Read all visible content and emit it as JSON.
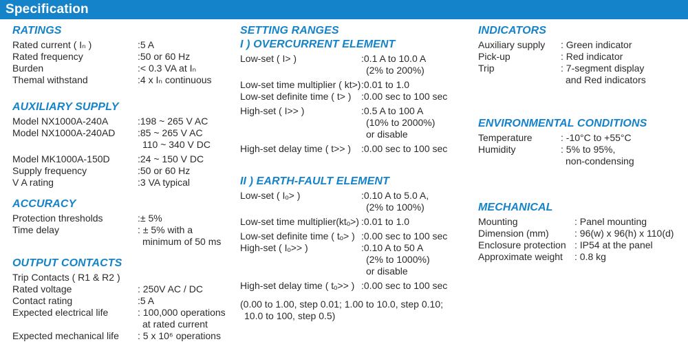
{
  "header": {
    "title": "Specification"
  },
  "colors": {
    "bar": "#1583c9",
    "heading": "#1583c9",
    "text": "#2a2a2a"
  },
  "columns": [
    {
      "sections": [
        {
          "slug": "ratings",
          "heading": "RATINGS",
          "rows": [
            {
              "label": "Rated current ( Iₙ )",
              "value": [
                ":5 A"
              ]
            },
            {
              "label": "Rated frequency",
              "value": [
                ":50 or 60 Hz"
              ]
            },
            {
              "label": "Burden",
              "value": [
                ":< 0.3 VA at Iₙ"
              ]
            },
            {
              "label": "Themal withstand",
              "value": [
                ":4 x Iₙ continuous"
              ]
            }
          ]
        },
        {
          "slug": "auxiliary-supply",
          "heading": "AUXILIARY SUPPLY",
          "rows": [
            {
              "label": "Model NX1000A-240A",
              "value": [
                ":198 ~ 265 V AC"
              ]
            },
            {
              "label": "Model NX1000A-240AD",
              "value": [
                ":85 ~ 265 V AC",
                "110 ~ 340 V DC"
              ]
            },
            {
              "label": "Model MK1000A-150D",
              "value": [
                ":24 ~ 150 V DC"
              ],
              "gap_top": true
            },
            {
              "label": "Supply frequency",
              "value": [
                ":50 or 60 Hz"
              ]
            },
            {
              "label": "V A rating",
              "value": [
                ":3 VA typical"
              ]
            }
          ]
        },
        {
          "slug": "accuracy",
          "heading": "ACCURACY",
          "rows": [
            {
              "label": "Protection thresholds",
              "value": [
                ":± 5%"
              ]
            },
            {
              "label": "Time delay",
              "value": [
                ": ± 5% with a",
                "minimum of 50 ms"
              ]
            }
          ]
        },
        {
          "slug": "output-contacts",
          "heading": "OUTPUT CONTACTS",
          "rows": [
            {
              "label": "Trip Contacts ( R1 & R2 )",
              "value": []
            },
            {
              "label": "Rated voltage",
              "value": [
                ": 250V AC / DC"
              ]
            },
            {
              "label": "Contact rating",
              "value": [
                ":5 A"
              ]
            },
            {
              "label": "Expected electrical life",
              "value": [
                ": 100,000 operations",
                "at rated current"
              ]
            },
            {
              "label": "Expected mechanical life",
              "value": [
                ": 5 x 10⁶ operations"
              ]
            }
          ]
        }
      ]
    },
    {
      "sections": [
        {
          "slug": "setting-ranges",
          "heading": "SETTING RANGES",
          "rows": []
        },
        {
          "slug": "overcurrent",
          "heading": "I ) OVERCURRENT ELEMENT",
          "rows": [
            {
              "label": "Low-set ( I> )",
              "value": [
                ":0.1 A to 10.0 A",
                "(2% to 200%)"
              ]
            },
            {
              "label": "Low-set time multiplier ( kt>)",
              "value": [
                ":0.01 to 1.0"
              ],
              "gap_top": true
            },
            {
              "label": "Low-set definite time ( t> )",
              "value": [
                ":0.00 sec to 100 sec"
              ]
            },
            {
              "label": "High-set ( I>> )",
              "value": [
                ":0.5 A to 100 A",
                "(10% to 2000%)",
                "or disable"
              ],
              "gap_top": true
            },
            {
              "label": "High-set delay time ( t>> )",
              "value": [
                ":0.00 sec to 100 sec"
              ],
              "gap_top": true
            }
          ]
        },
        {
          "slug": "earth-fault",
          "heading": "II ) EARTH-FAULT ELEMENT",
          "rows": [
            {
              "label": "Low-set ( Iₒ> )",
              "value": [
                ":0.10 A to 5.0 A,",
                "(2% to 100%)"
              ]
            },
            {
              "label": "Low-set time multiplier(ktₒ>)",
              "value": [
                ":0.01 to 1.0"
              ],
              "gap_top": true
            },
            {
              "label": "Low-set definite time ( tₒ> )",
              "value": [
                ":0.00 sec to 100 sec"
              ],
              "gap_top": true
            },
            {
              "label": "High-set ( Iₒ>> )",
              "value": [
                ":0.10 A to 50 A",
                "(2% to 1000%)",
                "or disable"
              ]
            },
            {
              "label": "High-set delay time ( tₒ>> )",
              "value": [
                ":0.00 sec to 100 sec"
              ],
              "gap_top": true
            },
            {
              "note": [
                "(0.00 to 1.00, step 0.01; 1.00 to 10.0, step 0.10;",
                "10.0 to 100, step 0.5)"
              ]
            }
          ]
        }
      ]
    },
    {
      "sections": [
        {
          "slug": "indicators",
          "heading": "INDICATORS",
          "rows": [
            {
              "label": "Auxiliary supply",
              "value": [
                ": Green indicator"
              ]
            },
            {
              "label": "Pick-up",
              "value": [
                ": Red indicator"
              ]
            },
            {
              "label": "Trip",
              "value": [
                ": 7-segment display",
                "and Red indicators"
              ]
            }
          ]
        },
        {
          "slug": "environmental",
          "heading": "ENVIRONMENTAL CONDITIONS",
          "rows": [
            {
              "label": "Temperature",
              "value": [
                ": -10°C to +55°C"
              ]
            },
            {
              "label": "Humidity",
              "value": [
                ": 5% to 95%,",
                "non-condensing"
              ]
            }
          ]
        },
        {
          "slug": "mechanical",
          "heading": "MECHANICAL",
          "rows": [
            {
              "label": "Mounting",
              "value": [
                ": Panel mounting"
              ]
            },
            {
              "label": "Dimension (mm)",
              "value": [
                ": 96(w) x 96(h) x 110(d)"
              ]
            },
            {
              "label": "Enclosure protection",
              "value": [
                ": IP54 at the panel"
              ]
            },
            {
              "label": "Approximate weight",
              "value": [
                ": 0.8 kg"
              ]
            }
          ]
        }
      ]
    }
  ]
}
